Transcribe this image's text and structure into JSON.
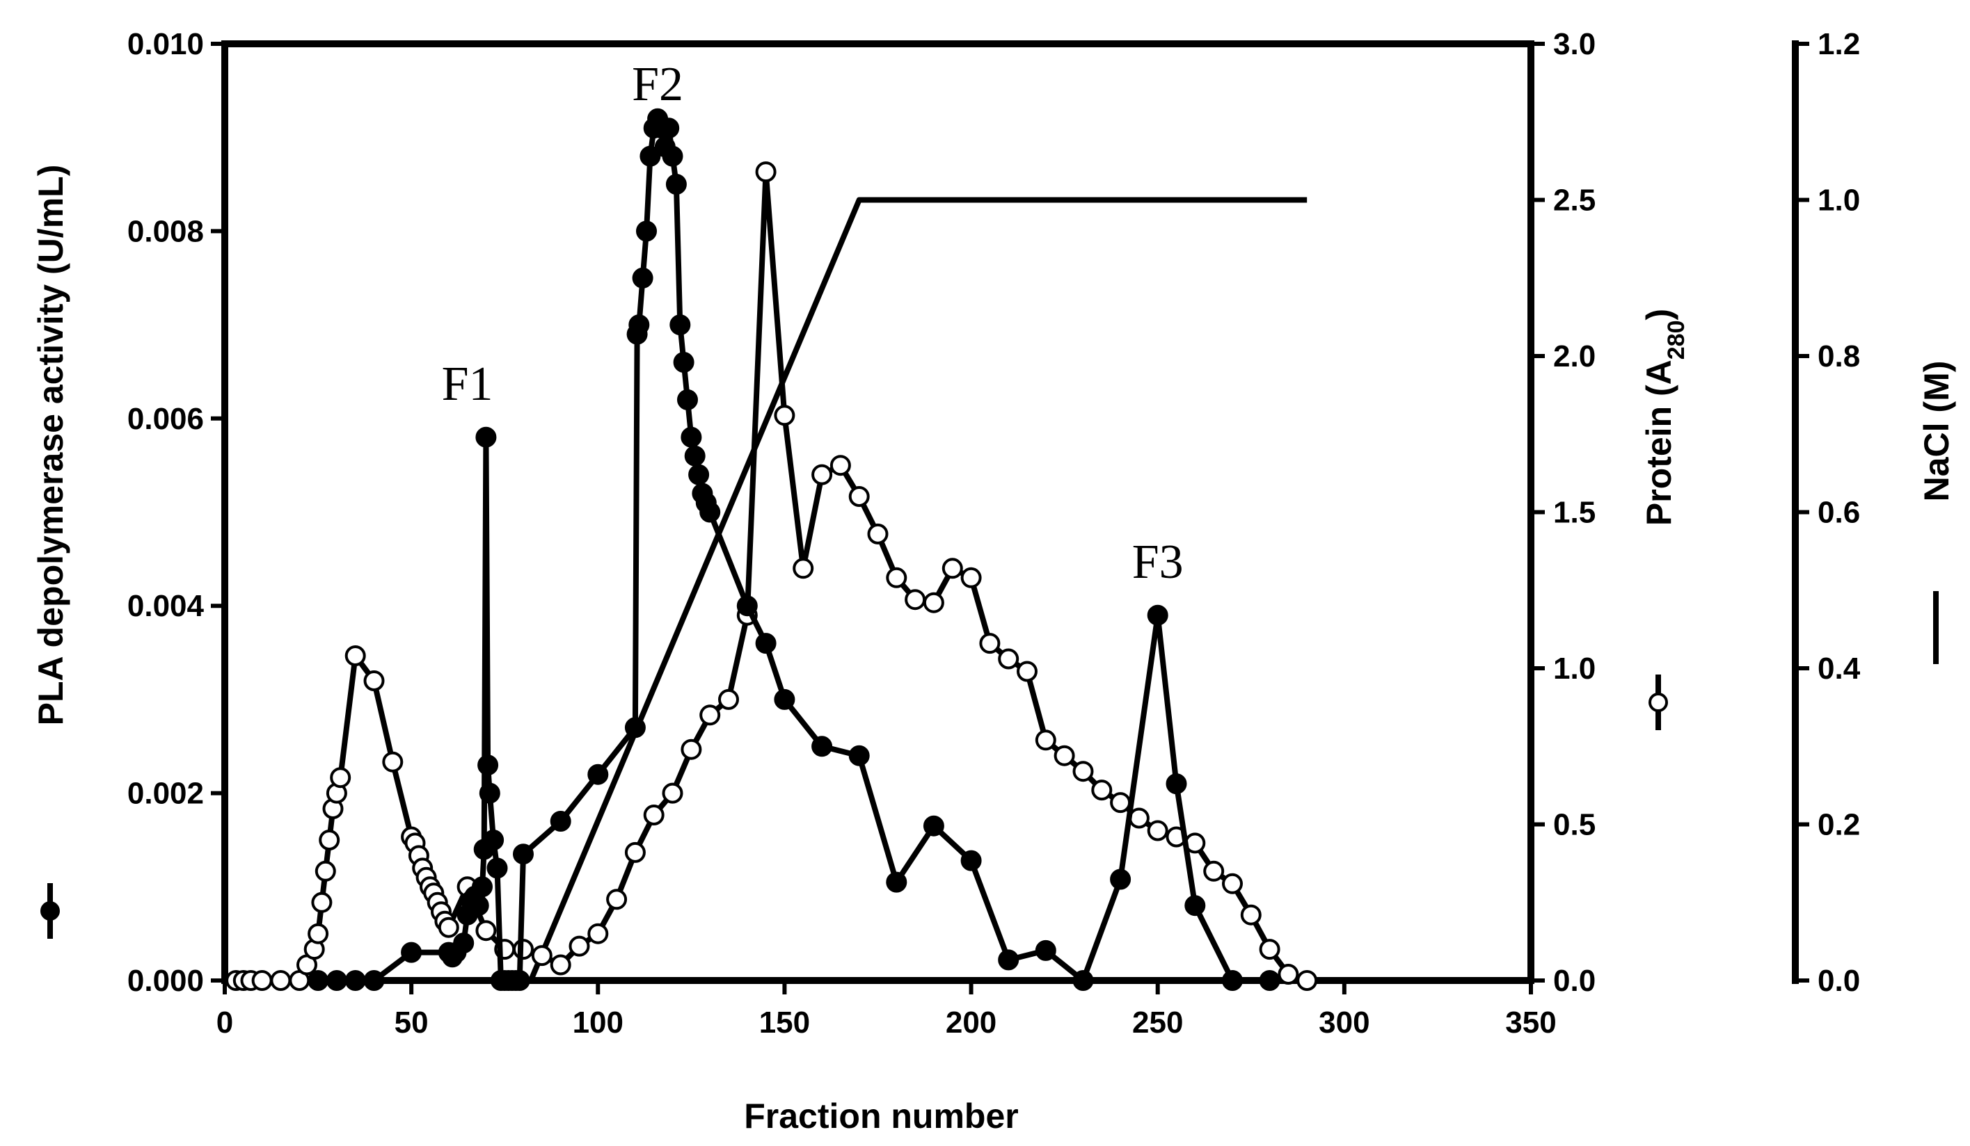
{
  "chart_data": {
    "type": "line",
    "xlabel": "Fraction number",
    "xlim": [
      0,
      350
    ],
    "xticks": [
      "0",
      "50",
      "100",
      "150",
      "200",
      "250",
      "300",
      "350"
    ],
    "xtick_values": [
      0,
      50,
      100,
      150,
      200,
      250,
      300,
      350
    ],
    "y_left": {
      "label": "PLA depolymerase activity (U/mL)",
      "ylim": [
        0,
        0.01
      ],
      "ticks": [
        "0.000",
        "0.002",
        "0.004",
        "0.006",
        "0.008",
        "0.010"
      ],
      "tick_values": [
        0,
        0.002,
        0.004,
        0.006,
        0.008,
        0.01
      ]
    },
    "y_right1": {
      "label_main": "Protein (A",
      "label_sub": "280",
      "label_end": ")",
      "ylim": [
        0,
        3.0
      ],
      "ticks": [
        "0.0",
        "0.5",
        "1.0",
        "1.5",
        "2.0",
        "2.5",
        "3.0"
      ],
      "tick_values": [
        0,
        0.5,
        1.0,
        1.5,
        2.0,
        2.5,
        3.0
      ]
    },
    "y_right2": {
      "label": "NaCl (M)",
      "ylim": [
        0,
        1.2
      ],
      "ticks": [
        "0.0",
        "0.2",
        "0.4",
        "0.6",
        "0.8",
        "1.0",
        "1.2"
      ],
      "tick_values": [
        0,
        0.2,
        0.4,
        0.6,
        0.8,
        1.0,
        1.2
      ]
    },
    "annotations": [
      {
        "text": "F1",
        "x": 65,
        "y": 0.0062
      },
      {
        "text": "F2",
        "x": 116,
        "y": 0.0094
      },
      {
        "text": "F3",
        "x": 250,
        "y": 0.0043
      }
    ],
    "series": [
      {
        "name": "PLA depolymerase activity",
        "axis": "left",
        "marker": "filled-circle",
        "x": [
          25,
          30,
          35,
          40,
          50,
          60,
          61,
          62,
          64,
          65,
          66,
          67,
          68,
          69,
          69.5,
          70,
          70.5,
          71,
          72,
          73,
          74,
          75,
          76,
          77,
          78,
          79,
          80,
          90,
          100,
          110,
          110.5,
          111,
          112,
          113,
          114,
          115,
          116,
          117,
          118,
          119,
          120,
          121,
          122,
          123,
          124,
          125,
          126,
          127,
          128,
          129,
          130,
          140,
          145,
          150,
          160,
          170,
          180,
          190,
          200,
          210,
          220,
          230,
          240,
          250,
          255,
          260,
          270,
          280
        ],
        "y": [
          0.0,
          0.0,
          0.0,
          0.0,
          0.0003,
          0.0003,
          0.00025,
          0.0003,
          0.0004,
          0.0007,
          0.00085,
          0.0009,
          0.0008,
          0.001,
          0.0014,
          0.0058,
          0.0023,
          0.002,
          0.0015,
          0.0012,
          0.0,
          0.0,
          0.0,
          0.0,
          0.0,
          0.0,
          0.00135,
          0.0017,
          0.0022,
          0.0027,
          0.0069,
          0.007,
          0.0075,
          0.008,
          0.0088,
          0.0091,
          0.0092,
          0.0091,
          0.0089,
          0.0091,
          0.0088,
          0.0085,
          0.007,
          0.0066,
          0.0062,
          0.0058,
          0.0056,
          0.0054,
          0.0052,
          0.0051,
          0.005,
          0.004,
          0.0036,
          0.003,
          0.0025,
          0.0024,
          0.00105,
          0.00165,
          0.00128,
          0.00022,
          0.00032,
          0.0,
          0.00108,
          0.0039,
          0.0021,
          0.0008,
          0.0,
          0.0
        ]
      },
      {
        "name": "Protein (A280)",
        "axis": "right1",
        "marker": "open-circle",
        "x": [
          3,
          5,
          7,
          10,
          15,
          20,
          22,
          24,
          25,
          26,
          27,
          28,
          29,
          30,
          31,
          35,
          40,
          45,
          50,
          51,
          52,
          53,
          54,
          55,
          56,
          57,
          58,
          59,
          60,
          65,
          70,
          75,
          80,
          85,
          90,
          95,
          100,
          105,
          110,
          115,
          120,
          125,
          130,
          135,
          140,
          145,
          150,
          155,
          160,
          165,
          170,
          175,
          180,
          185,
          190,
          195,
          200,
          205,
          210,
          215,
          220,
          225,
          230,
          235,
          240,
          245,
          250,
          255,
          260,
          265,
          270,
          275,
          280,
          285,
          290
        ],
        "y": [
          0.0,
          0.0,
          0.0,
          0.0,
          0.0,
          0.0,
          0.05,
          0.1,
          0.15,
          0.25,
          0.35,
          0.45,
          0.55,
          0.6,
          0.65,
          1.04,
          0.96,
          0.7,
          0.46,
          0.44,
          0.4,
          0.36,
          0.33,
          0.3,
          0.28,
          0.25,
          0.22,
          0.19,
          0.17,
          0.3,
          0.16,
          0.1,
          0.1,
          0.08,
          0.05,
          0.11,
          0.15,
          0.26,
          0.41,
          0.53,
          0.6,
          0.74,
          0.85,
          0.9,
          1.17,
          2.59,
          1.81,
          1.32,
          1.62,
          1.65,
          1.55,
          1.43,
          1.29,
          1.22,
          1.21,
          1.32,
          1.29,
          1.08,
          1.03,
          0.99,
          0.77,
          0.72,
          0.67,
          0.61,
          0.57,
          0.52,
          0.48,
          0.46,
          0.44,
          0.35,
          0.31,
          0.21,
          0.1,
          0.02,
          0.0
        ]
      },
      {
        "name": "NaCl (M)",
        "axis": "right2",
        "marker": "none",
        "x": [
          82,
          170,
          290
        ],
        "y": [
          0.0,
          1.0,
          1.0
        ]
      }
    ]
  }
}
